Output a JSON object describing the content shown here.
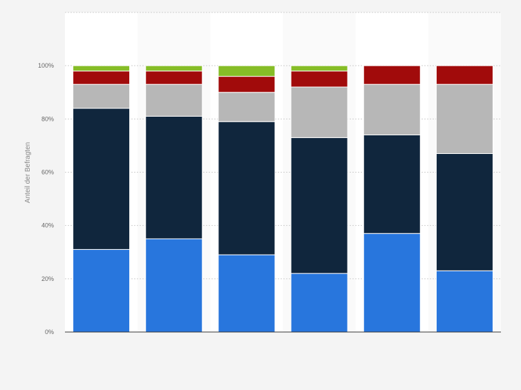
{
  "chart_data": {
    "type": "bar",
    "stacked": true,
    "ylabel": "Anteil der Befragten",
    "ylim": [
      0,
      120
    ],
    "yticks": [
      0,
      20,
      40,
      60,
      80,
      100
    ],
    "ytick_labels": [
      "0%",
      "20%",
      "40%",
      "60%",
      "80%",
      "100%"
    ],
    "grid": true,
    "categories": [
      "",
      "",
      "",
      "",
      "",
      ""
    ],
    "series": [
      {
        "color": "#2876dd",
        "values": [
          31,
          35,
          29,
          22,
          37,
          23
        ]
      },
      {
        "color": "#10263d",
        "values": [
          53,
          46,
          50,
          51,
          37,
          44
        ]
      },
      {
        "color": "#b7b7b7",
        "values": [
          9,
          12,
          11,
          19,
          19,
          26
        ]
      },
      {
        "color": "#a10b0b",
        "values": [
          5,
          5,
          6,
          6,
          7,
          7
        ]
      },
      {
        "color": "#86bd27",
        "values": [
          2,
          2,
          4,
          2,
          0,
          0
        ]
      }
    ]
  }
}
